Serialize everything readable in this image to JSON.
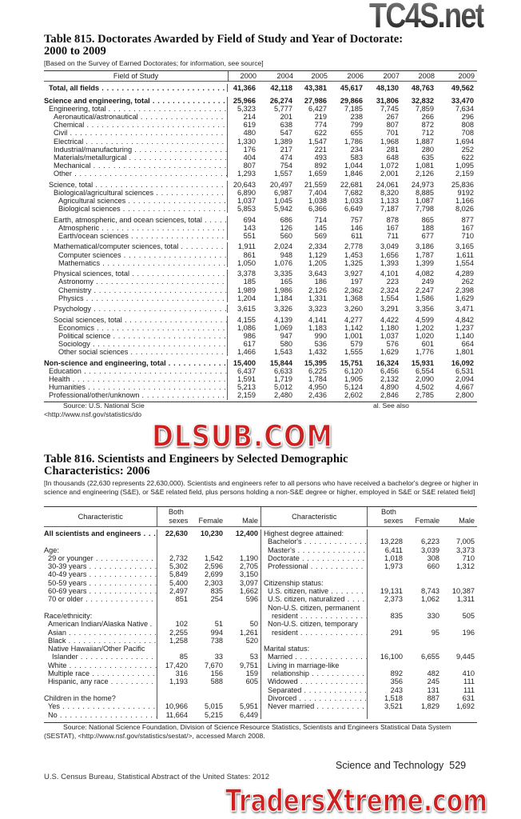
{
  "watermarks": {
    "top": "TC4S.net",
    "middle": "DLSUB.COM",
    "bottom": "TradersXtreme.com"
  },
  "table815": {
    "title_line1": "Table 815. Doctorates Awarded by Field of Study and Year of Doctorate:",
    "title_line2": "2000 to 2009",
    "headnote": "[Based on the Survey of Earned Doctorates; for information, see source]",
    "columns": [
      "Field of Study",
      "2000",
      "2004",
      "2005",
      "2006",
      "2007",
      "2008",
      "2009"
    ],
    "groups": [
      [
        {
          "label": "Total, all fields",
          "level": 1,
          "bold": true,
          "values": [
            "41,366",
            "42,118",
            "43,381",
            "45,617",
            "48,130",
            "48,763",
            "49,562"
          ]
        }
      ],
      [
        {
          "label": "Science and engineering, total",
          "level": 0,
          "bold": true,
          "values": [
            "25,966",
            "26,274",
            "27,986",
            "29,866",
            "31,806",
            "32,832",
            "33,470"
          ]
        },
        {
          "label": "Engineering, total",
          "level": 1,
          "values": [
            "5,323",
            "5,777",
            "6,427",
            "7,185",
            "7,745",
            "7,859",
            "7,634"
          ]
        },
        {
          "label": "Aeronautical/astronautical",
          "level": 2,
          "values": [
            "214",
            "201",
            "219",
            "238",
            "267",
            "266",
            "296"
          ]
        },
        {
          "label": "Chemical",
          "level": 2,
          "values": [
            "619",
            "638",
            "774",
            "799",
            "807",
            "872",
            "808"
          ]
        },
        {
          "label": "Civil",
          "level": 2,
          "values": [
            "480",
            "547",
            "622",
            "655",
            "701",
            "712",
            "708"
          ]
        },
        {
          "label": "Electrical",
          "level": 2,
          "values": [
            "1,330",
            "1,389",
            "1,547",
            "1,786",
            "1,968",
            "1,887",
            "1,694"
          ]
        },
        {
          "label": "Industrial/manufacturing",
          "level": 2,
          "values": [
            "176",
            "217",
            "221",
            "234",
            "281",
            "280",
            "252"
          ]
        },
        {
          "label": "Materials/metallurgical",
          "level": 2,
          "values": [
            "404",
            "474",
            "493",
            "583",
            "648",
            "635",
            "622"
          ]
        },
        {
          "label": "Mechanical",
          "level": 2,
          "values": [
            "807",
            "754",
            "892",
            "1,044",
            "1,072",
            "1,081",
            "1,095"
          ]
        },
        {
          "label": "Other",
          "level": 2,
          "values": [
            "1,293",
            "1,557",
            "1,659",
            "1,846",
            "2,001",
            "2,126",
            "2,159"
          ]
        }
      ],
      [
        {
          "label": "Science, total",
          "level": 1,
          "values": [
            "20,643",
            "20,497",
            "21,559",
            "22,681",
            "24,061",
            "24,973",
            "25,836"
          ]
        },
        {
          "label": "Biological/agricultural sciences",
          "level": 2,
          "values": [
            "6,890",
            "6,987",
            "7,404",
            "7,682",
            "8,320",
            "8,885",
            "9192"
          ]
        },
        {
          "label": "Agricultural sciences",
          "level": 3,
          "values": [
            "1,037",
            "1,045",
            "1,038",
            "1,033",
            "1,133",
            "1,087",
            "1,166"
          ]
        },
        {
          "label": "Biological sciences",
          "level": 3,
          "values": [
            "5,853",
            "5,942",
            "6,366",
            "6,649",
            "7,187",
            "7,798",
            "8,026"
          ]
        }
      ],
      [
        {
          "label": "Earth, atmospheric, and ocean sciences, total",
          "level": 2,
          "values": [
            "694",
            "686",
            "714",
            "757",
            "878",
            "865",
            "877"
          ]
        },
        {
          "label": "Atmospheric",
          "level": 3,
          "values": [
            "143",
            "126",
            "145",
            "146",
            "167",
            "188",
            "167"
          ]
        },
        {
          "label": "Earth/ocean sciences",
          "level": 3,
          "values": [
            "551",
            "560",
            "569",
            "611",
            "711",
            "677",
            "710"
          ]
        }
      ],
      [
        {
          "label": "Mathematical/computer sciences, total",
          "level": 2,
          "values": [
            "1,911",
            "2,024",
            "2,334",
            "2,778",
            "3,049",
            "3,186",
            "3,165"
          ]
        },
        {
          "label": "Computer sciences",
          "level": 3,
          "values": [
            "861",
            "948",
            "1,129",
            "1,453",
            "1,656",
            "1,787",
            "1,611"
          ]
        },
        {
          "label": "Mathematics",
          "level": 3,
          "values": [
            "1,050",
            "1,076",
            "1,205",
            "1,325",
            "1,393",
            "1,399",
            "1,554"
          ]
        }
      ],
      [
        {
          "label": "Physical sciences, total",
          "level": 2,
          "values": [
            "3,378",
            "3,335",
            "3,643",
            "3,927",
            "4,101",
            "4,082",
            "4,289"
          ]
        },
        {
          "label": "Astronomy",
          "level": 3,
          "values": [
            "185",
            "165",
            "186",
            "197",
            "223",
            "249",
            "262"
          ]
        },
        {
          "label": "Chemistry",
          "level": 3,
          "values": [
            "1,989",
            "1,986",
            "2,126",
            "2,362",
            "2,324",
            "2,247",
            "2,398"
          ]
        },
        {
          "label": "Physics",
          "level": 3,
          "values": [
            "1,204",
            "1,184",
            "1,331",
            "1,368",
            "1,554",
            "1,586",
            "1,629"
          ]
        }
      ],
      [
        {
          "label": "Psychology",
          "level": 2,
          "values": [
            "3,615",
            "3,326",
            "3,323",
            "3,260",
            "3,291",
            "3,356",
            "3,471"
          ]
        }
      ],
      [
        {
          "label": "Social sciences, total",
          "level": 2,
          "values": [
            "4,155",
            "4,139",
            "4,141",
            "4,277",
            "4,422",
            "4,599",
            "4,842"
          ]
        },
        {
          "label": "Economics",
          "level": 3,
          "values": [
            "1,086",
            "1,069",
            "1,183",
            "1,142",
            "1,180",
            "1,202",
            "1,237"
          ]
        },
        {
          "label": "Political science",
          "level": 3,
          "values": [
            "986",
            "947",
            "990",
            "1,001",
            "1,037",
            "1,020",
            "1,140"
          ]
        },
        {
          "label": "Sociology",
          "level": 3,
          "values": [
            "617",
            "580",
            "536",
            "579",
            "576",
            "601",
            "664"
          ]
        },
        {
          "label": "Other social sciences",
          "level": 3,
          "values": [
            "1,466",
            "1,543",
            "1,432",
            "1,555",
            "1,629",
            "1,776",
            "1,801"
          ]
        }
      ],
      [
        {
          "label": "Non-science and engineering, total",
          "level": 0,
          "bold": true,
          "values": [
            "15,400",
            "15,844",
            "15,395",
            "15,751",
            "16,324",
            "15,931",
            "16,092"
          ]
        },
        {
          "label": "Education",
          "level": 1,
          "values": [
            "6,437",
            "6,633",
            "6,225",
            "6,120",
            "6,456",
            "6,554",
            "6,531"
          ]
        },
        {
          "label": "Health",
          "level": 1,
          "values": [
            "1,591",
            "1,719",
            "1,784",
            "1,905",
            "2,132",
            "2,090",
            "2,094"
          ]
        },
        {
          "label": "Humanities",
          "level": 1,
          "values": [
            "5,213",
            "5,012",
            "4,950",
            "5,124",
            "4,890",
            "4,502",
            "4,667"
          ]
        },
        {
          "label": "Professional/other/unknown",
          "level": 1,
          "values": [
            "2,159",
            "2,480",
            "2,436",
            "2,602",
            "2,846",
            "2,785",
            "2,800"
          ]
        }
      ]
    ],
    "source_line1_start": "Source: U.S. National Scie",
    "source_line1_end": "al. See also",
    "source_line2": "<http://www.nsf.gov/statistics/do"
  },
  "table816": {
    "title_line1": "Table 816. Scientists and Engineers by Selected Demographic",
    "title_line2": "Characteristics: 2006",
    "headnote": "[In thousands (22,630 represents 22,630,000). Scientists and engineers refer to all persons who have received a bachelor's degree or higher in science and engineering (S&E), or S&E related field, plus persons holding a non-S&E degree or higher, employed in S&E or S&E related field]",
    "columns": {
      "characteristic": "Characteristic",
      "both_line1": "Both",
      "both_line2": "sexes",
      "female": "Female",
      "male": "Male"
    },
    "left": [
      {
        "label": "All scientists and engineers",
        "bold": true,
        "values": [
          "22,630",
          "10,230",
          "12,400"
        ]
      },
      null,
      {
        "label": "Age:",
        "heading": true
      },
      {
        "label": "29 or younger",
        "level": 1,
        "values": [
          "2,732",
          "1,542",
          "1,190"
        ]
      },
      {
        "label": "30-39 years",
        "level": 1,
        "values": [
          "5,302",
          "2,596",
          "2,705"
        ]
      },
      {
        "label": "40-49 years",
        "level": 1,
        "values": [
          "5,849",
          "2,699",
          "3,150"
        ]
      },
      {
        "label": "50-59 years",
        "level": 1,
        "values": [
          "5,400",
          "2,303",
          "3,097"
        ]
      },
      {
        "label": "60-69 years",
        "level": 1,
        "values": [
          "2,497",
          "835",
          "1,662"
        ]
      },
      {
        "label": "70 or older",
        "level": 1,
        "values": [
          "851",
          "254",
          "596"
        ]
      },
      null,
      {
        "label": "Race/ethnicity:",
        "heading": true
      },
      {
        "label": "American Indian/Alaska Native .",
        "level": 1,
        "nodots": true,
        "values": [
          "102",
          "51",
          "50"
        ]
      },
      {
        "label": "Asian",
        "level": 1,
        "values": [
          "2,255",
          "994",
          "1,261"
        ]
      },
      {
        "label": "Black",
        "level": 1,
        "values": [
          "1,258",
          "738",
          "520"
        ]
      },
      {
        "label": "Native Hawaiian/Other Pacific",
        "level": 1,
        "heading": true
      },
      {
        "label": "Islander",
        "level": 2,
        "values": [
          "85",
          "33",
          "53"
        ]
      },
      {
        "label": "White",
        "level": 1,
        "values": [
          "17,420",
          "7,670",
          "9,751"
        ]
      },
      {
        "label": "Multiple race",
        "level": 1,
        "values": [
          "316",
          "156",
          "159"
        ]
      },
      {
        "label": "Hispanic, any race",
        "level": 1,
        "values": [
          "1,193",
          "588",
          "605"
        ]
      },
      null,
      {
        "label": "Children in the home?",
        "heading": true
      },
      {
        "label": "Yes",
        "level": 1,
        "values": [
          "10,966",
          "5,015",
          "5,951"
        ]
      },
      {
        "label": "No",
        "level": 1,
        "values": [
          "11,664",
          "5,215",
          "6,449"
        ]
      }
    ],
    "right": [
      {
        "label": "Highest degree attained:",
        "heading": true
      },
      {
        "label": "Bachelor's",
        "level": 1,
        "values": [
          "13,228",
          "6,223",
          "7,005"
        ]
      },
      {
        "label": "Master's",
        "level": 1,
        "values": [
          "6,411",
          "3,039",
          "3,373"
        ]
      },
      {
        "label": "Doctorate",
        "level": 1,
        "values": [
          "1,018",
          "308",
          "710"
        ]
      },
      {
        "label": "Professional",
        "level": 1,
        "values": [
          "1,973",
          "660",
          "1,312"
        ]
      },
      null,
      {
        "label": "Citizenship status:",
        "heading": true
      },
      {
        "label": "U.S. citizen, native",
        "level": 1,
        "values": [
          "19,131",
          "8,743",
          "10,387"
        ]
      },
      {
        "label": "U.S. citizen, naturalized",
        "level": 1,
        "values": [
          "2,373",
          "1,062",
          "1,311"
        ]
      },
      {
        "label": "Non-U.S. citizen, permanent",
        "level": 1,
        "heading": true
      },
      {
        "label": "resident",
        "level": 2,
        "values": [
          "835",
          "330",
          "505"
        ]
      },
      {
        "label": "Non-U.S. citizen, temporary",
        "level": 1,
        "heading": true
      },
      {
        "label": "resident",
        "level": 2,
        "values": [
          "291",
          "95",
          "196"
        ]
      },
      null,
      {
        "label": "Marital status:",
        "heading": true
      },
      {
        "label": "Married",
        "level": 1,
        "values": [
          "16,100",
          "6,655",
          "9,445"
        ]
      },
      {
        "label": "Living in marriage-like",
        "level": 1,
        "heading": true
      },
      {
        "label": "relationship",
        "level": 2,
        "values": [
          "892",
          "482",
          "410"
        ]
      },
      {
        "label": "Widowed",
        "level": 1,
        "values": [
          "356",
          "245",
          "111"
        ]
      },
      {
        "label": "Separated",
        "level": 1,
        "values": [
          "243",
          "131",
          "111"
        ]
      },
      {
        "label": "Divorced",
        "level": 1,
        "values": [
          "1,518",
          "887",
          "631"
        ]
      },
      {
        "label": "Never married",
        "level": 1,
        "values": [
          "3,521",
          "1,829",
          "1,692"
        ]
      },
      null
    ],
    "source": "Source: National Science Foundation, Division of Science Resource Statistics, Scientists and Engineers Statistical Data System (SESTAT), <http://www.nsf.gov/statistics/sestat/>, accessed March 2008."
  },
  "footer": {
    "section": "Science and Technology",
    "page_number": "529",
    "publication": "U.S. Census Bureau, Statistical Abstract of the United States: 2012"
  }
}
